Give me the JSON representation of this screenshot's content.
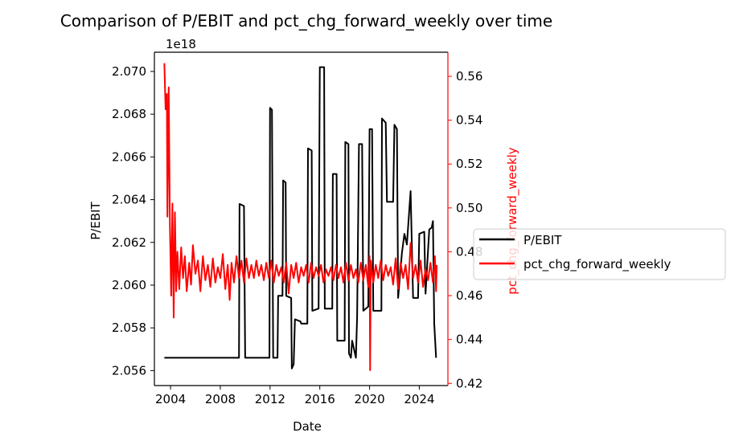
{
  "chart_data": {
    "type": "line",
    "title": "Comparison of P/EBIT and pct_chg_forward_weekly over time",
    "xlabel": "Date",
    "ylabel_left": "P/EBIT",
    "ylabel_right": "pct_chg_forward_weekly",
    "left_axis_offset_label": "1e18",
    "xlim": [
      2002.7,
      2026.3
    ],
    "ylim_left": [
      2.0553,
      2.0709
    ],
    "ylim_right": [
      0.419,
      0.571
    ],
    "x_ticks": [
      2004,
      2008,
      2012,
      2016,
      2020,
      2024
    ],
    "x_tick_labels": [
      "2004",
      "2008",
      "2012",
      "2016",
      "2020",
      "2024"
    ],
    "y_left_ticks": [
      2.056,
      2.058,
      2.06,
      2.062,
      2.064,
      2.066,
      2.068,
      2.07
    ],
    "y_left_tick_labels": [
      "2.056",
      "2.058",
      "2.060",
      "2.062",
      "2.064",
      "2.066",
      "2.068",
      "2.070"
    ],
    "y_right_ticks": [
      0.42,
      0.44,
      0.46,
      0.48,
      0.5,
      0.52,
      0.54,
      0.56
    ],
    "y_right_tick_labels": [
      "0.42",
      "0.44",
      "0.46",
      "0.48",
      "0.50",
      "0.52",
      "0.54",
      "0.56"
    ],
    "legend": {
      "placement": "right-outside",
      "entries": [
        "P/EBIT",
        "pct_chg_forward_weekly"
      ]
    },
    "grid": false,
    "series": [
      {
        "name": "P/EBIT",
        "axis": "left",
        "color": "#000000",
        "points": [
          [
            2003.5,
            2.0566
          ],
          [
            2009.5,
            2.0566
          ],
          [
            2009.55,
            2.0638
          ],
          [
            2009.9,
            2.0637
          ],
          [
            2010.0,
            2.0566
          ],
          [
            2011.95,
            2.0566
          ],
          [
            2012.0,
            2.0683
          ],
          [
            2012.15,
            2.0682
          ],
          [
            2012.25,
            2.0566
          ],
          [
            2012.6,
            2.0566
          ],
          [
            2012.65,
            2.0595
          ],
          [
            2013.0,
            2.0595
          ],
          [
            2013.05,
            2.0649
          ],
          [
            2013.25,
            2.0648
          ],
          [
            2013.3,
            2.0595
          ],
          [
            2013.7,
            2.0594
          ],
          [
            2013.75,
            2.0561
          ],
          [
            2013.9,
            2.0563
          ],
          [
            2014.0,
            2.0584
          ],
          [
            2014.45,
            2.0583
          ],
          [
            2014.5,
            2.0582
          ],
          [
            2015.0,
            2.0582
          ],
          [
            2015.05,
            2.0664
          ],
          [
            2015.35,
            2.0663
          ],
          [
            2015.4,
            2.0588
          ],
          [
            2015.9,
            2.0589
          ],
          [
            2016.0,
            2.0702
          ],
          [
            2016.35,
            2.0702
          ],
          [
            2016.4,
            2.0589
          ],
          [
            2017.0,
            2.0589
          ],
          [
            2017.05,
            2.0652
          ],
          [
            2017.35,
            2.0652
          ],
          [
            2017.4,
            2.0574
          ],
          [
            2018.0,
            2.0574
          ],
          [
            2018.05,
            2.0667
          ],
          [
            2018.3,
            2.0666
          ],
          [
            2018.35,
            2.0568
          ],
          [
            2018.5,
            2.0566
          ],
          [
            2018.6,
            2.0574
          ],
          [
            2018.9,
            2.0566
          ],
          [
            2019.0,
            2.0585
          ],
          [
            2019.15,
            2.0666
          ],
          [
            2019.4,
            2.0666
          ],
          [
            2019.5,
            2.0588
          ],
          [
            2019.9,
            2.059
          ],
          [
            2020.0,
            2.0673
          ],
          [
            2020.2,
            2.0673
          ],
          [
            2020.3,
            2.0588
          ],
          [
            2020.95,
            2.0588
          ],
          [
            2021.0,
            2.0678
          ],
          [
            2021.3,
            2.0676
          ],
          [
            2021.4,
            2.0639
          ],
          [
            2021.9,
            2.0639
          ],
          [
            2022.0,
            2.0675
          ],
          [
            2022.2,
            2.0673
          ],
          [
            2022.3,
            2.0594
          ],
          [
            2022.6,
            2.0615
          ],
          [
            2022.8,
            2.0624
          ],
          [
            2023.0,
            2.0619
          ],
          [
            2023.3,
            2.0644
          ],
          [
            2023.5,
            2.0594
          ],
          [
            2023.9,
            2.0594
          ],
          [
            2024.0,
            2.0624
          ],
          [
            2024.4,
            2.0625
          ],
          [
            2024.5,
            2.0596
          ],
          [
            2024.8,
            2.0626
          ],
          [
            2025.0,
            2.0627
          ],
          [
            2025.1,
            2.063
          ],
          [
            2025.2,
            2.0582
          ],
          [
            2025.35,
            2.0566
          ]
        ]
      },
      {
        "name": "pct_chg_forward_weekly",
        "axis": "right",
        "color": "#ff0000",
        "points": [
          [
            2003.5,
            0.566
          ],
          [
            2003.6,
            0.545
          ],
          [
            2003.7,
            0.552
          ],
          [
            2003.75,
            0.496
          ],
          [
            2003.85,
            0.555
          ],
          [
            2003.95,
            0.492
          ],
          [
            2004.05,
            0.46
          ],
          [
            2004.15,
            0.502
          ],
          [
            2004.25,
            0.45
          ],
          [
            2004.35,
            0.498
          ],
          [
            2004.45,
            0.462
          ],
          [
            2004.55,
            0.48
          ],
          [
            2004.7,
            0.463
          ],
          [
            2004.85,
            0.482
          ],
          [
            2005.0,
            0.468
          ],
          [
            2005.15,
            0.478
          ],
          [
            2005.3,
            0.462
          ],
          [
            2005.5,
            0.475
          ],
          [
            2005.65,
            0.465
          ],
          [
            2005.8,
            0.483
          ],
          [
            2006.0,
            0.47
          ],
          [
            2006.2,
            0.476
          ],
          [
            2006.4,
            0.462
          ],
          [
            2006.6,
            0.478
          ],
          [
            2006.8,
            0.467
          ],
          [
            2007.0,
            0.474
          ],
          [
            2007.2,
            0.464
          ],
          [
            2007.4,
            0.477
          ],
          [
            2007.6,
            0.466
          ],
          [
            2007.8,
            0.473
          ],
          [
            2008.0,
            0.468
          ],
          [
            2008.2,
            0.479
          ],
          [
            2008.4,
            0.463
          ],
          [
            2008.6,
            0.474
          ],
          [
            2008.75,
            0.458
          ],
          [
            2008.9,
            0.475
          ],
          [
            2009.1,
            0.466
          ],
          [
            2009.3,
            0.478
          ],
          [
            2009.5,
            0.468
          ],
          [
            2009.7,
            0.476
          ],
          [
            2009.9,
            0.466
          ],
          [
            2010.1,
            0.477
          ],
          [
            2010.3,
            0.468
          ],
          [
            2010.5,
            0.474
          ],
          [
            2010.7,
            0.468
          ],
          [
            2010.9,
            0.476
          ],
          [
            2011.1,
            0.469
          ],
          [
            2011.3,
            0.474
          ],
          [
            2011.5,
            0.467
          ],
          [
            2011.7,
            0.475
          ],
          [
            2011.9,
            0.468
          ],
          [
            2012.1,
            0.476
          ],
          [
            2012.3,
            0.466
          ],
          [
            2012.5,
            0.474
          ],
          [
            2012.7,
            0.469
          ],
          [
            2012.9,
            0.473
          ],
          [
            2013.1,
            0.466
          ],
          [
            2013.3,
            0.475
          ],
          [
            2013.5,
            0.461
          ],
          [
            2013.7,
            0.474
          ],
          [
            2013.9,
            0.468
          ],
          [
            2014.1,
            0.475
          ],
          [
            2014.3,
            0.466
          ],
          [
            2014.5,
            0.473
          ],
          [
            2014.7,
            0.469
          ],
          [
            2014.9,
            0.474
          ],
          [
            2015.1,
            0.466
          ],
          [
            2015.3,
            0.475
          ],
          [
            2015.5,
            0.468
          ],
          [
            2015.7,
            0.473
          ],
          [
            2015.9,
            0.469
          ],
          [
            2016.1,
            0.474
          ],
          [
            2016.3,
            0.466
          ],
          [
            2016.5,
            0.472
          ],
          [
            2016.7,
            0.469
          ],
          [
            2016.9,
            0.473
          ],
          [
            2017.1,
            0.467
          ],
          [
            2017.3,
            0.474
          ],
          [
            2017.5,
            0.468
          ],
          [
            2017.7,
            0.473
          ],
          [
            2017.9,
            0.466
          ],
          [
            2018.1,
            0.475
          ],
          [
            2018.3,
            0.467
          ],
          [
            2018.5,
            0.474
          ],
          [
            2018.7,
            0.468
          ],
          [
            2018.9,
            0.472
          ],
          [
            2019.1,
            0.466
          ],
          [
            2019.3,
            0.475
          ],
          [
            2019.5,
            0.467
          ],
          [
            2019.7,
            0.474
          ],
          [
            2019.9,
            0.464
          ],
          [
            2020.0,
            0.478
          ],
          [
            2020.05,
            0.426
          ],
          [
            2020.1,
            0.476
          ],
          [
            2020.3,
            0.466
          ],
          [
            2020.5,
            0.474
          ],
          [
            2020.7,
            0.468
          ],
          [
            2020.9,
            0.476
          ],
          [
            2021.1,
            0.467
          ],
          [
            2021.3,
            0.474
          ],
          [
            2021.5,
            0.469
          ],
          [
            2021.7,
            0.473
          ],
          [
            2021.9,
            0.465
          ],
          [
            2022.1,
            0.477
          ],
          [
            2022.3,
            0.463
          ],
          [
            2022.5,
            0.475
          ],
          [
            2022.7,
            0.468
          ],
          [
            2022.9,
            0.474
          ],
          [
            2023.1,
            0.463
          ],
          [
            2023.3,
            0.484
          ],
          [
            2023.5,
            0.468
          ],
          [
            2023.7,
            0.474
          ],
          [
            2023.9,
            0.466
          ],
          [
            2024.1,
            0.476
          ],
          [
            2024.3,
            0.464
          ],
          [
            2024.5,
            0.472
          ],
          [
            2024.7,
            0.467
          ],
          [
            2024.9,
            0.475
          ],
          [
            2025.1,
            0.466
          ],
          [
            2025.25,
            0.478
          ],
          [
            2025.35,
            0.462
          ],
          [
            2025.4,
            0.474
          ]
        ]
      }
    ]
  }
}
